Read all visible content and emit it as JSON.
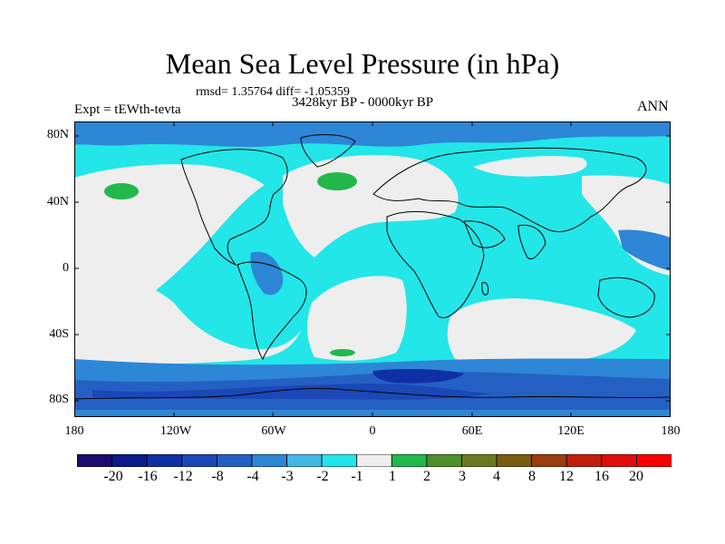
{
  "title": "Mean Sea Level Pressure (in hPa)",
  "stats_text": "rmsd= 1.35764 diff= -1.05359",
  "period_text": "3428kyr BP - 0000kyr BP",
  "experiment_label": "Expt = tEWth-tevta",
  "season_label": "ANN",
  "lat_ticks": [
    "80N",
    "40N",
    "0",
    "40S",
    "80S"
  ],
  "lon_ticks": [
    "180",
    "120W",
    "60W",
    "0",
    "60E",
    "120E",
    "180"
  ],
  "colorbar": {
    "labels": [
      "-20",
      "-16",
      "-12",
      "-8",
      "-4",
      "-3",
      "-2",
      "-1",
      "1",
      "2",
      "3",
      "4",
      "8",
      "12",
      "16",
      "20"
    ],
    "colors": [
      "#1c0a6e",
      "#0c1a8a",
      "#0f2fa5",
      "#1a48b7",
      "#2460c4",
      "#2d86d6",
      "#44b8e6",
      "#22e6e8",
      "#eeeeee",
      "#22b84a",
      "#4c8f2b",
      "#6a7b1f",
      "#7a5c10",
      "#9a3c0e",
      "#c11f0c",
      "#e10c0c",
      "#f70000"
    ]
  }
}
